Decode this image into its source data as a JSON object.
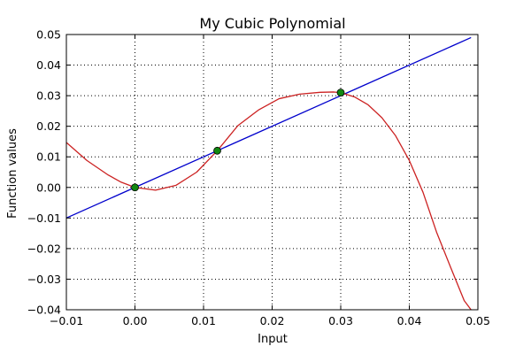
{
  "chart_data": {
    "type": "line",
    "title": "My Cubic Polynomial",
    "xlabel": "Input",
    "ylabel": "Function values",
    "xlim": [
      -0.01,
      0.05
    ],
    "ylim": [
      -0.04,
      0.05
    ],
    "xticks": [
      -0.01,
      0.0,
      0.01,
      0.02,
      0.03,
      0.04,
      0.05
    ],
    "xtick_labels": [
      "−0.01",
      "0.00",
      "0.01",
      "0.02",
      "0.03",
      "0.04",
      "0.05"
    ],
    "yticks": [
      -0.04,
      -0.03,
      -0.02,
      -0.01,
      0.0,
      0.01,
      0.02,
      0.03,
      0.04,
      0.05
    ],
    "ytick_labels": [
      "−0.04",
      "−0.03",
      "−0.02",
      "−0.01",
      "0.00",
      "0.01",
      "0.02",
      "0.03",
      "0.04",
      "0.05"
    ],
    "grid": true,
    "grid_style": "dotted",
    "series": [
      {
        "kind": "line",
        "color": "#0000cc",
        "x": [
          -0.01,
          0.049
        ],
        "y": [
          -0.01,
          0.049
        ]
      },
      {
        "kind": "curve",
        "color": "#cc2222",
        "x": [
          -0.01,
          -0.007,
          -0.004,
          -0.002,
          0.0,
          0.003,
          0.006,
          0.009,
          0.012,
          0.015,
          0.018,
          0.021,
          0.024,
          0.027,
          0.029,
          0.03,
          0.032,
          0.034,
          0.036,
          0.038,
          0.04,
          0.042,
          0.044,
          0.046,
          0.048,
          0.049
        ],
        "y": [
          0.0147,
          0.0088,
          0.0042,
          0.0017,
          0.0,
          -0.0009,
          0.0007,
          0.005,
          0.012,
          0.0202,
          0.0253,
          0.029,
          0.0305,
          0.0311,
          0.0312,
          0.031,
          0.0296,
          0.027,
          0.0228,
          0.0169,
          0.0088,
          -0.0016,
          -0.0148,
          -0.026,
          -0.037,
          -0.04
        ]
      },
      {
        "kind": "markers",
        "color": "#118811",
        "x": [
          0.0,
          0.012,
          0.03
        ],
        "y": [
          0.0,
          0.012,
          0.031
        ]
      }
    ]
  }
}
